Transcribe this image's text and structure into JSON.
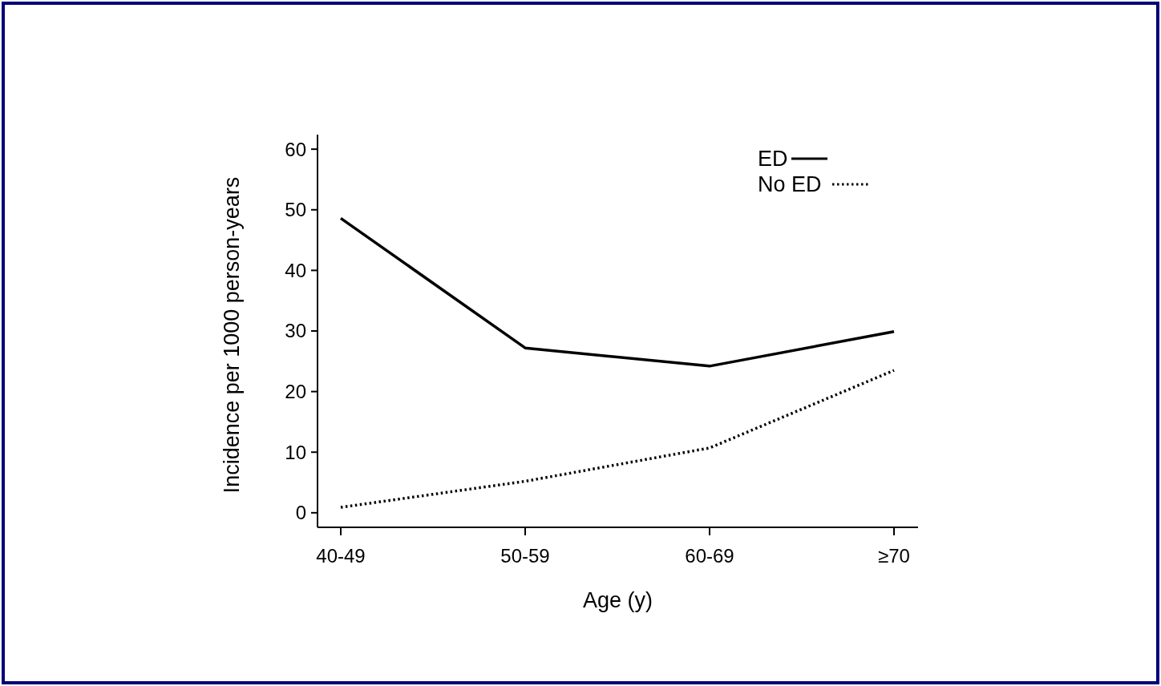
{
  "chart_data": {
    "type": "line",
    "xlabel": "Age (y)",
    "ylabel": "Incidence per 1000 person-years",
    "categories": [
      "40-49",
      "50-59",
      "60-69",
      "≥70"
    ],
    "series": [
      {
        "name": "ED",
        "color": "#000000",
        "line_style": "solid",
        "values": [
          48.6,
          27.2,
          24.2,
          29.9
        ]
      },
      {
        "name": "No ED",
        "color": "#000000",
        "line_style": "dotted",
        "values": [
          0.9,
          5.2,
          10.7,
          23.5
        ]
      }
    ],
    "ylim": [
      -2.4,
      62.4
    ],
    "yticks": [
      0,
      10,
      20,
      30,
      40,
      50,
      60
    ],
    "grid": false,
    "legend": "top right",
    "marker": "none"
  }
}
